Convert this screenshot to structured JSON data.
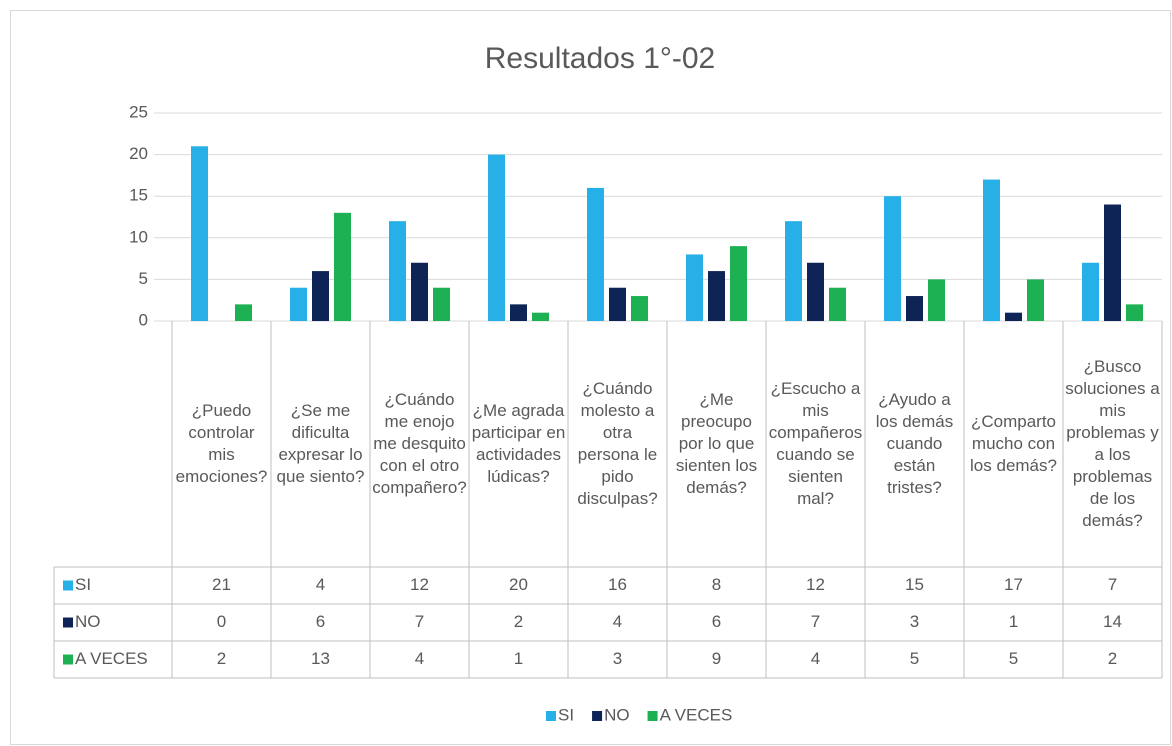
{
  "chart_data": {
    "type": "bar",
    "title": "Resultados 1°-02",
    "categories": [
      "¿Puedo controlar mis emociones?",
      "¿Se me dificulta expresar lo que siento?",
      "¿Cuándo me enojo me desquito con el otro compañero?",
      "¿Me agrada participar en actividades lúdicas?",
      "¿Cuándo molesto a otra persona le pido disculpas?",
      "¿Me preocupo por lo que sienten los demás?",
      "¿Escucho a mis compañeros cuando se sienten mal?",
      "¿Ayudo a los demás cuando están tristes?",
      "¿Comparto mucho con los demás?",
      "¿Busco soluciones a mis problemas y a los problemas de los demás?"
    ],
    "series": [
      {
        "name": "SI",
        "color": "#27b0e8",
        "values": [
          21,
          4,
          12,
          20,
          16,
          8,
          12,
          15,
          17,
          7
        ]
      },
      {
        "name": "NO",
        "color": "#0e2456",
        "values": [
          0,
          6,
          7,
          2,
          4,
          6,
          7,
          3,
          1,
          14
        ]
      },
      {
        "name": "A VECES",
        "color": "#1db153",
        "values": [
          2,
          13,
          4,
          1,
          3,
          9,
          4,
          5,
          5,
          2
        ]
      }
    ],
    "ylim": [
      0,
      25
    ],
    "yticks": [
      0,
      5,
      10,
      15,
      20,
      25
    ],
    "grid": true,
    "legend": "bottom"
  }
}
